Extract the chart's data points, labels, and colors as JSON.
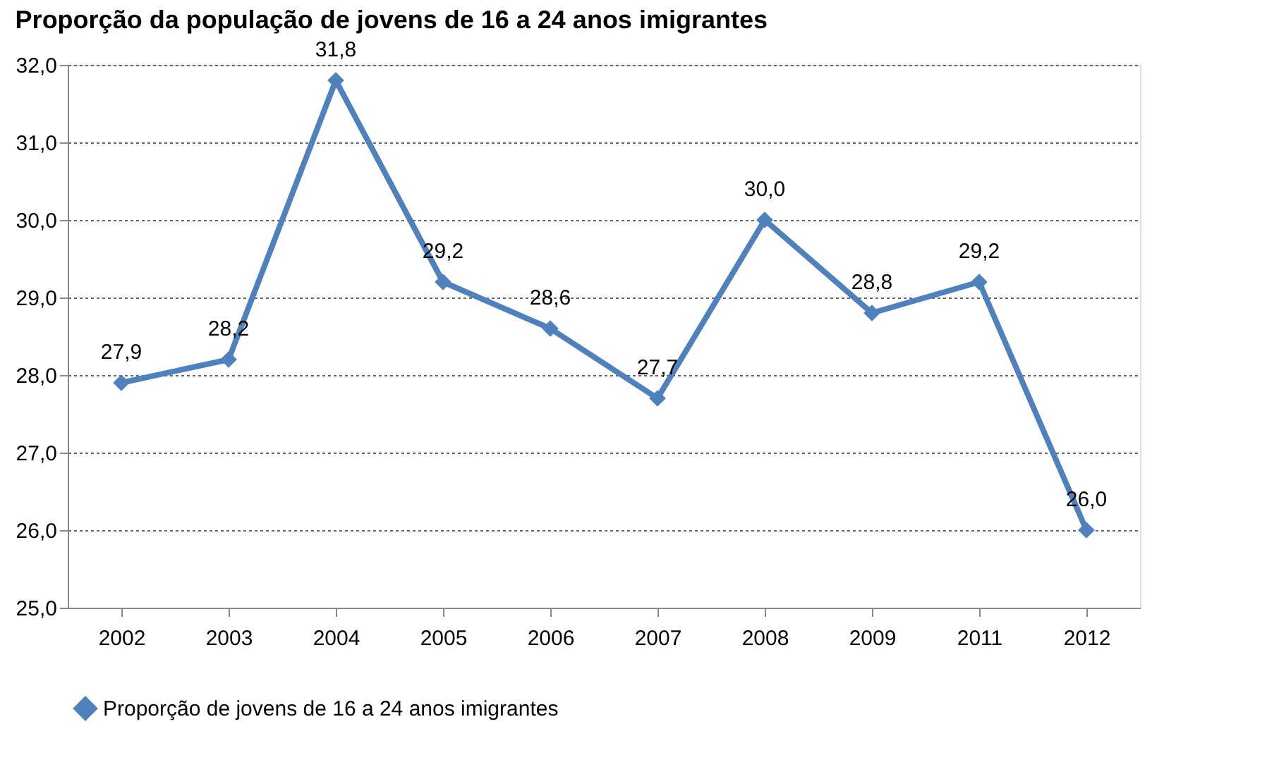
{
  "chart_data": {
    "type": "line",
    "title": "Proporção da população de jovens de 16 a 24 anos imigrantes",
    "categories": [
      "2002",
      "2003",
      "2004",
      "2005",
      "2006",
      "2007",
      "2008",
      "2009",
      "2011",
      "2012"
    ],
    "series": [
      {
        "name": "Proporção de jovens de 16 a 24 anos imigrantes",
        "color": "#4f81bd",
        "values": [
          27.9,
          28.2,
          31.8,
          29.2,
          28.6,
          27.7,
          30.0,
          28.8,
          29.2,
          26.0
        ],
        "value_labels": [
          "27,9",
          "28,2",
          "31,8",
          "29,2",
          "28,6",
          "27,7",
          "30,0",
          "28,8",
          "29,2",
          "26,0"
        ]
      }
    ],
    "ylim": [
      25,
      32
    ],
    "yticks": [
      {
        "value": 25,
        "label": "25,0"
      },
      {
        "value": 26,
        "label": "26,0"
      },
      {
        "value": 27,
        "label": "27,0"
      },
      {
        "value": 28,
        "label": "28,0"
      },
      {
        "value": 29,
        "label": "29,0"
      },
      {
        "value": 30,
        "label": "30,0"
      },
      {
        "value": 31,
        "label": "31,0"
      },
      {
        "value": 32,
        "label": "32,0"
      }
    ],
    "grid": "y",
    "legend": "bottom",
    "marker": "diamond",
    "line_style": "solid"
  }
}
